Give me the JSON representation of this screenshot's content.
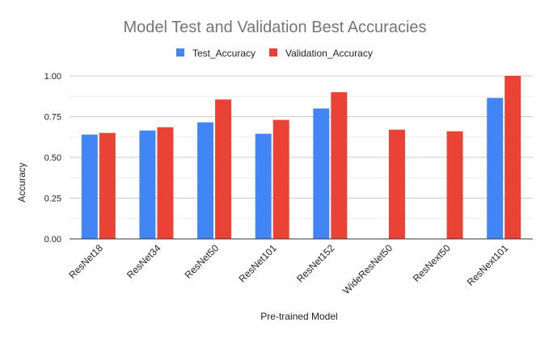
{
  "chart_data": {
    "type": "bar",
    "title": "Model Test and Validation Best Accuracies",
    "xlabel": "Pre-trained Model",
    "ylabel": "Accuracy",
    "ylim": [
      0,
      1
    ],
    "yticks": [
      "0.00",
      "0.25",
      "0.50",
      "0.75",
      "1.00"
    ],
    "ytick_values": [
      0,
      0.25,
      0.5,
      0.75,
      1.0
    ],
    "grid": true,
    "legend_position": "top",
    "categories": [
      "ResNet18",
      "ResNet34",
      "ResNet50",
      "ResNet101",
      "ResNet152",
      "WideResNet50",
      "ResNext50",
      "ResNext101"
    ],
    "series": [
      {
        "name": "Test_Accuracy",
        "color": "#4285f4",
        "values": [
          0.64,
          0.665,
          0.715,
          0.645,
          0.8,
          null,
          null,
          0.865
        ]
      },
      {
        "name": "Validation_Accuracy",
        "color": "#ea4335",
        "values": [
          0.65,
          0.685,
          0.855,
          0.73,
          0.9,
          0.67,
          0.66,
          1.0
        ]
      }
    ]
  }
}
